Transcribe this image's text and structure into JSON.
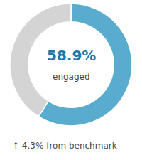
{
  "chart_data": {
    "type": "donut",
    "values": [
      58.9,
      41.1
    ],
    "colors": [
      "#5aacce",
      "#d4d4d4"
    ],
    "annotations": [
      {
        "text": "58.9%",
        "color": "#1a7aad"
      },
      {
        "text": "engaged",
        "color": "#444444"
      },
      {
        "text": "↑ 4.3% from benchmark",
        "color": "#444444"
      }
    ]
  }
}
